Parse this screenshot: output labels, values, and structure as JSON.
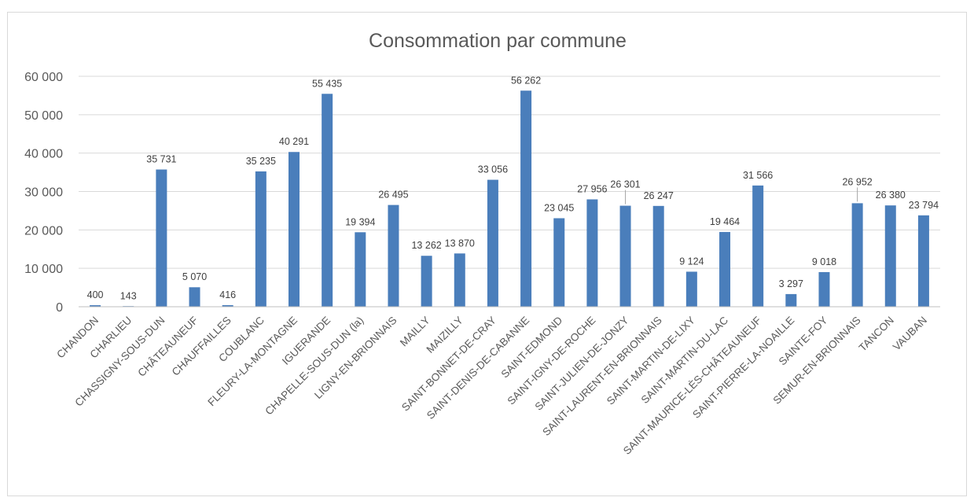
{
  "chart_data": {
    "type": "bar",
    "title": "Consommation par commune",
    "xlabel": "",
    "ylabel": "",
    "ylim": [
      0,
      60000
    ],
    "yticks": [
      "0",
      "10 000",
      "20 000",
      "30 000",
      "40 000",
      "50 000",
      "60 000"
    ],
    "grid": true,
    "legend": "none",
    "bar_color": "#4a7ebb",
    "categories": [
      "CHANDON",
      "CHARLIEU",
      "CHASSIGNY-SOUS-DUN",
      "CHÂTEAUNEUF",
      "CHAUFFAILLES",
      "COUBLANC",
      "FLEURY-LA-MONTAGNE",
      "IGUERANDE",
      "CHAPELLE-SOUS-DUN (la)",
      "LIGNY-EN-BRIONNAIS",
      "MAILLY",
      "MAIZILLY",
      "SAINT-BONNET-DE-CRAY",
      "SAINT-DENIS-DE-CABANNE",
      "SAINT-EDMOND",
      "SAINT-IGNY-DE-ROCHE",
      "SAINT-JULIEN-DE-JONZY",
      "SAINT-LAURENT-EN-BRIONNAIS",
      "SAINT-MARTIN-DE-LIXY",
      "SAINT-MARTIN-DU-LAC",
      "SAINT-MAURICE-LÈS-CHÂTEAUNEUF",
      "SAINT-PIERRE-LA-NOAILLE",
      "SAINTE-FOY",
      "SEMUR-EN-BRIONNAIS",
      "TANCON",
      "VAUBAN"
    ],
    "values": [
      400,
      143,
      35731,
      5070,
      416,
      35235,
      40291,
      55435,
      19394,
      26495,
      13262,
      13870,
      33056,
      56262,
      23045,
      27956,
      26301,
      26247,
      9124,
      19464,
      31566,
      3297,
      9018,
      26952,
      26380,
      23794
    ],
    "data_labels": [
      "400",
      "143",
      "35 731",
      "5 070",
      "416",
      "35 235",
      "40 291",
      "55 435",
      "19 394",
      "26 495",
      "13 262",
      "13 870",
      "33 056",
      "56 262",
      "23 045",
      "27 956",
      "26 301",
      "26 247",
      "9 124",
      "19 464",
      "31 566",
      "3 297",
      "9 018",
      "26 952",
      "26 380",
      "23 794"
    ]
  }
}
